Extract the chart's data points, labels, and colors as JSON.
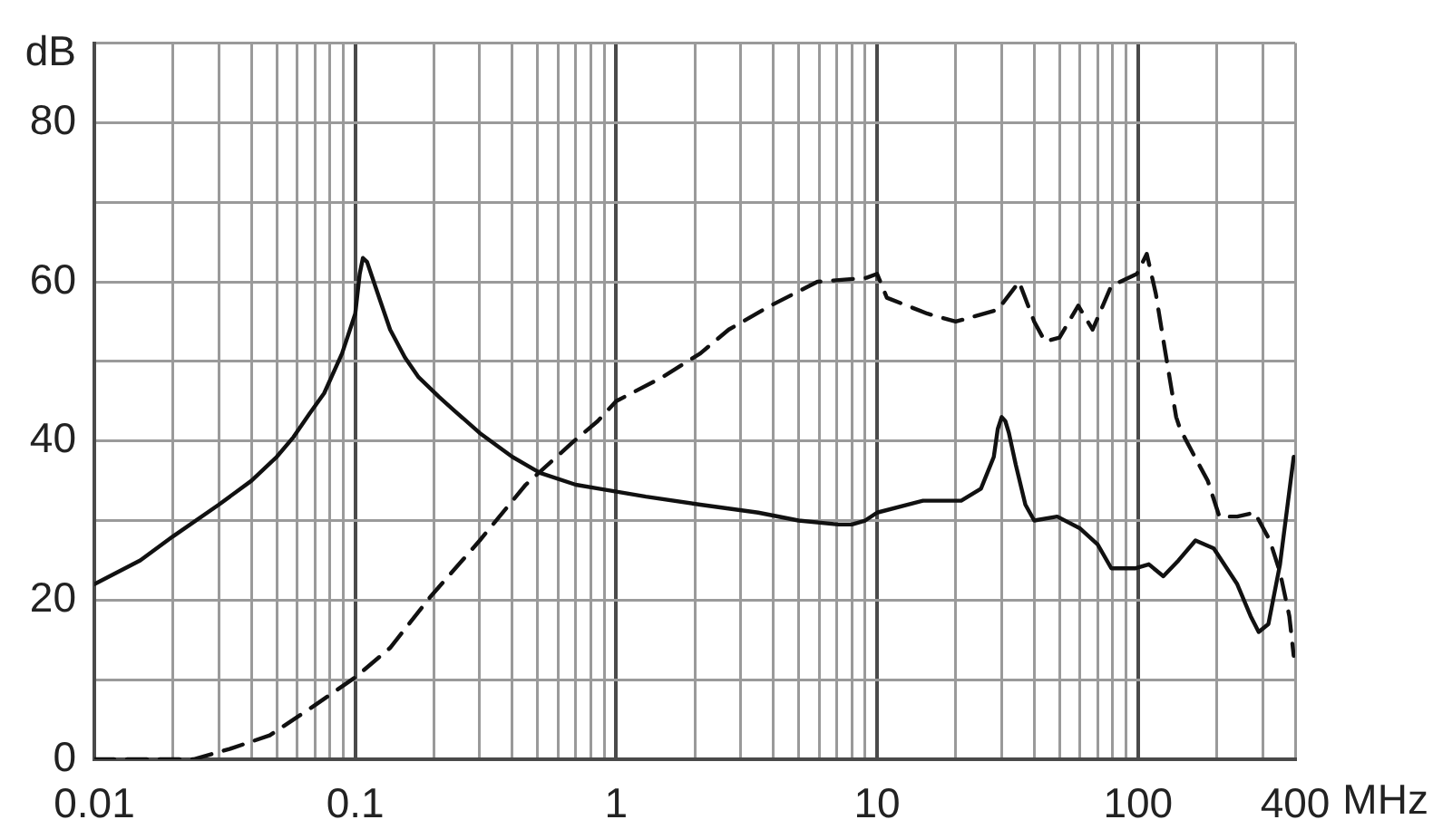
{
  "chart_data": {
    "type": "line",
    "xlabel": "MHz",
    "ylabel": "dB",
    "log": "x",
    "grid": true,
    "xlim": [
      0.01,
      400
    ],
    "ylim": [
      0,
      90
    ],
    "xticks": [
      0.01,
      {
        "value": 0.02,
        "label": null
      },
      {
        "value": 0.03,
        "label": null
      },
      {
        "value": 0.04,
        "label": null
      },
      {
        "value": 0.05,
        "label": null
      },
      {
        "value": 0.06,
        "label": null
      },
      {
        "value": 0.07,
        "label": null
      },
      {
        "value": 0.08,
        "label": null
      },
      {
        "value": 0.09,
        "label": null
      },
      0.1,
      {
        "value": 0.2,
        "label": null
      },
      {
        "value": 0.3,
        "label": null
      },
      {
        "value": 0.4,
        "label": null
      },
      {
        "value": 0.5,
        "label": null
      },
      {
        "value": 0.6,
        "label": null
      },
      {
        "value": 0.7,
        "label": null
      },
      {
        "value": 0.8,
        "label": null
      },
      {
        "value": 0.9,
        "label": null
      },
      1,
      {
        "value": 2,
        "label": null
      },
      {
        "value": 3,
        "label": null
      },
      {
        "value": 4,
        "label": null
      },
      {
        "value": 5,
        "label": null
      },
      {
        "value": 6,
        "label": null
      },
      {
        "value": 7,
        "label": null
      },
      {
        "value": 8,
        "label": null
      },
      {
        "value": 9,
        "label": null
      },
      10,
      {
        "value": 20,
        "label": null
      },
      {
        "value": 30,
        "label": null
      },
      {
        "value": 40,
        "label": null
      },
      {
        "value": 50,
        "label": null
      },
      {
        "value": 60,
        "label": null
      },
      {
        "value": 70,
        "label": null
      },
      {
        "value": 80,
        "label": null
      },
      {
        "value": 90,
        "label": null
      },
      100,
      {
        "value": 200,
        "label": null
      },
      {
        "value": 300,
        "label": null
      },
      400
    ],
    "yticks": [
      0,
      {
        "value": 10,
        "label": null
      },
      20,
      {
        "value": 30,
        "label": null
      },
      40,
      {
        "value": 50,
        "label": null
      },
      60,
      {
        "value": 70,
        "label": null
      },
      80,
      {
        "value": 90,
        "label": null
      }
    ],
    "series": [
      {
        "color": "#111111",
        "line_style": "solid",
        "x": [
          0.01,
          0.015,
          0.02,
          0.03,
          0.04,
          0.05,
          0.058,
          0.067,
          0.076,
          0.089,
          0.1,
          0.104,
          0.107,
          0.111,
          0.115,
          0.125,
          0.136,
          0.155,
          0.175,
          0.21,
          0.24,
          0.3,
          0.4,
          0.51,
          0.7,
          0.86,
          1.3,
          2.1,
          3.5,
          5,
          7.1,
          8,
          9,
          10,
          15,
          21,
          25,
          28,
          29,
          30,
          31,
          32,
          34,
          37,
          40,
          49,
          60,
          70,
          79,
          98,
          110,
          125,
          143,
          166,
          195,
          240,
          270,
          290,
          316,
          350,
          395
        ],
        "values": [
          22,
          25,
          28,
          32,
          35,
          38,
          40.5,
          43.5,
          46,
          51,
          56,
          61,
          63,
          62.5,
          61,
          57.5,
          54,
          50.5,
          48,
          45.5,
          43.8,
          41,
          38,
          36,
          34.5,
          34,
          33,
          32,
          31,
          30,
          29.5,
          29.5,
          30,
          31,
          32.5,
          32.5,
          34,
          38,
          41.5,
          43,
          42.5,
          41,
          37,
          32,
          30,
          30.5,
          29,
          27,
          24,
          24,
          24.5,
          23,
          25,
          27.5,
          26.5,
          22,
          18,
          16,
          17,
          24.5,
          38
        ]
      },
      {
        "color": "#111111",
        "line_style": "dashed",
        "x": [
          0.01,
          0.024,
          0.033,
          0.047,
          0.068,
          0.1,
          0.136,
          0.195,
          0.3,
          0.45,
          0.69,
          0.85,
          1,
          1.5,
          2.1,
          2.7,
          3.9,
          5.9,
          9.1,
          10,
          10.9,
          15.6,
          20,
          29,
          35,
          40,
          44,
          50,
          59,
          67,
          79,
          99,
          108,
          117,
          126,
          140,
          145,
          165,
          185,
          205,
          240,
          280,
          320,
          350,
          380,
          395
        ],
        "values": [
          0,
          0,
          1.3,
          3,
          6.5,
          10.3,
          14,
          20.5,
          27.5,
          34.5,
          40,
          42.5,
          45,
          48,
          51,
          54,
          57,
          60,
          60.5,
          61,
          58,
          56,
          55,
          56.5,
          60,
          55,
          52.5,
          53,
          57,
          54,
          59.5,
          61,
          63.5,
          58.5,
          52,
          43,
          41.5,
          38,
          35,
          30.5,
          30.5,
          31,
          27.5,
          23.5,
          18,
          13
        ]
      }
    ]
  }
}
